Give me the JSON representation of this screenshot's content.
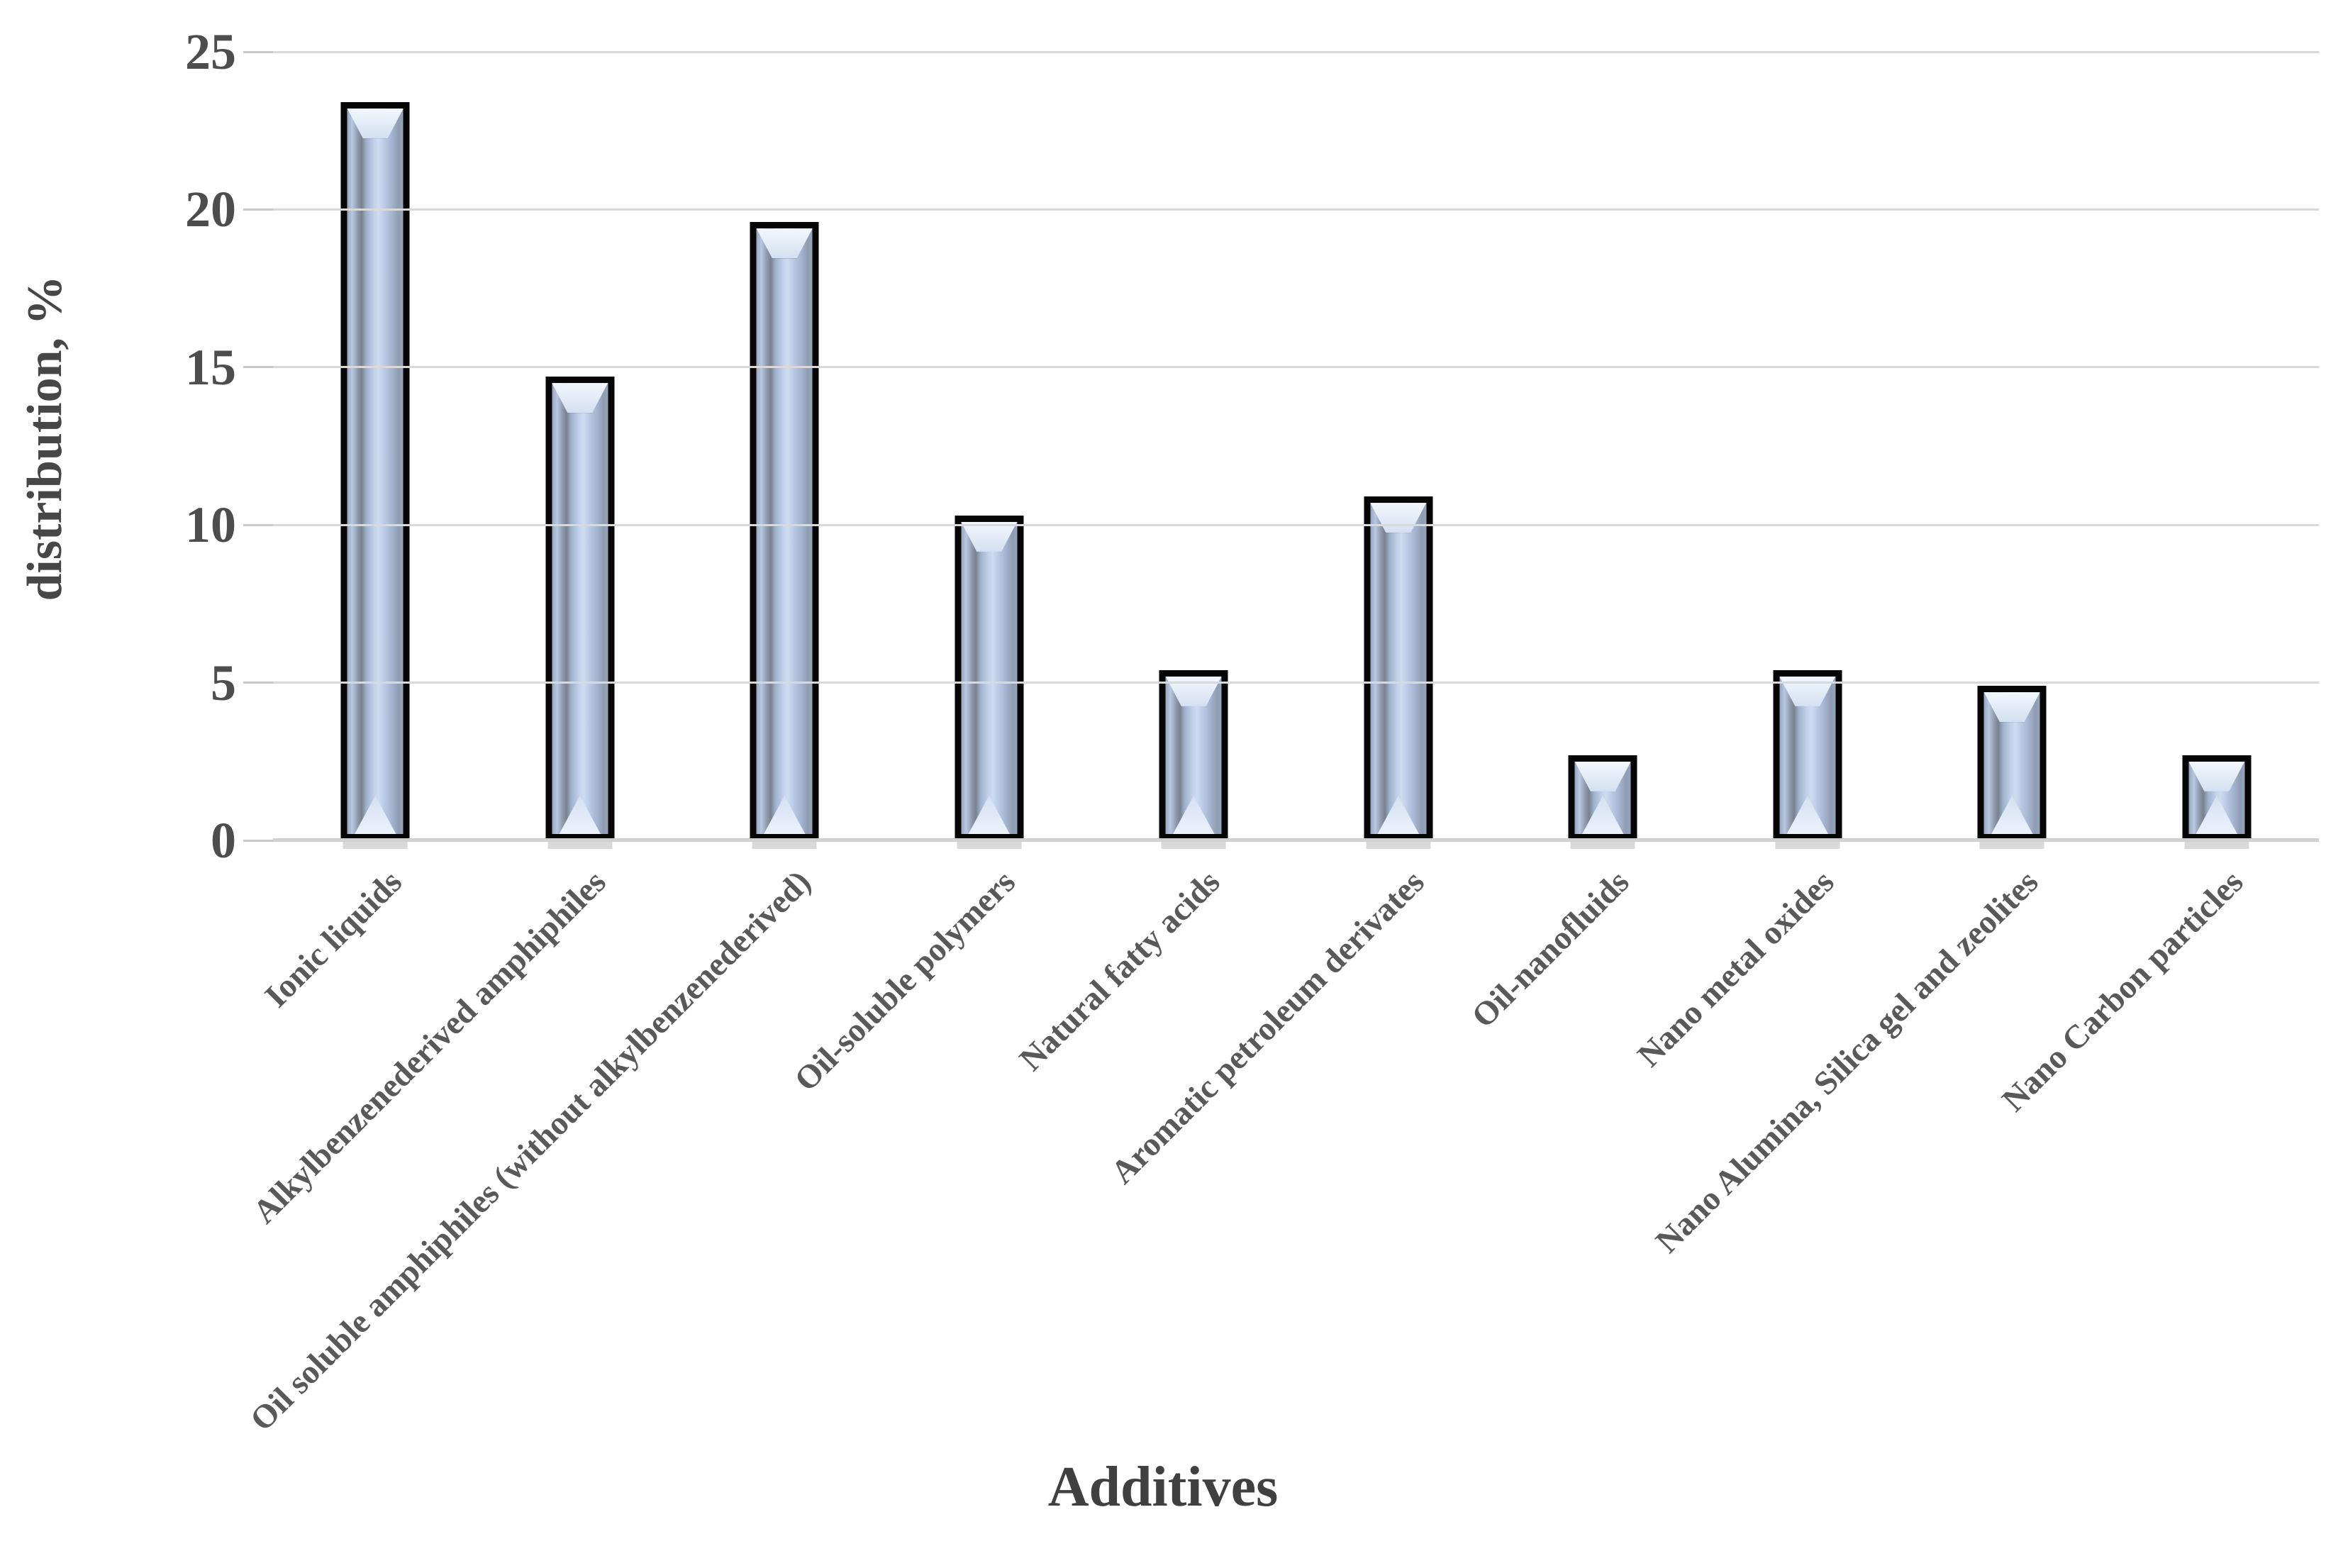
{
  "chart_data": {
    "type": "bar",
    "title": "",
    "xlabel": "Additives",
    "ylabel": "distribution, %",
    "categories": [
      "Ionic liquids",
      "Alkylbenzenederived amphiphiles",
      "Oil soluble amphiphiles (without alkylbenzenederived)",
      "Oil-soluble polymers",
      "Natural fatty acids",
      "Aromatic petroleum derivates",
      "Oil-nanofluids",
      "Nano metal oxides",
      "Nano Alumina, Silica gel and zeolites",
      "Nano Carbon particles"
    ],
    "values": [
      23.4,
      14.7,
      19.6,
      10.3,
      5.4,
      10.9,
      2.7,
      5.4,
      4.9,
      2.7
    ],
    "ylim": [
      0,
      25
    ],
    "yticks": [
      0,
      5,
      10,
      15,
      20,
      25
    ],
    "grid": true,
    "legend_position": "none",
    "styles": {
      "bar_fill_light": "#cfdcf1",
      "bar_fill_mid": "#a9b9d4",
      "bar_fill_dark": "#77828f",
      "bar_border": "#060606",
      "grid_color": "#d9d9d9",
      "axis_line_color": "#d1d1d1",
      "tick_text_color": "#4d4d4d",
      "label_text_color": "#595959",
      "title_text_color": "#404040",
      "background": "#ffffff"
    }
  }
}
